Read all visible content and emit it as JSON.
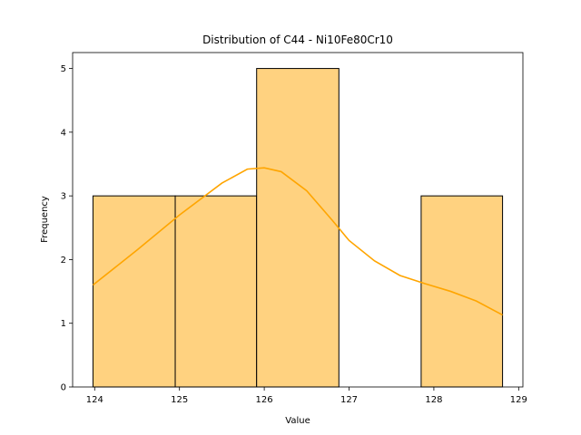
{
  "chart_data": {
    "type": "bar",
    "title": "Distribution of C44 - Ni10Fe80Cr10",
    "xlabel": "Value",
    "ylabel": "Frequency",
    "xlim": [
      123.74,
      129.05
    ],
    "ylim": [
      0,
      5.25
    ],
    "xticks": [
      "124",
      "125",
      "126",
      "127",
      "128",
      "129"
    ],
    "yticks": [
      "0",
      "1",
      "2",
      "3",
      "4",
      "5"
    ],
    "bins": [
      {
        "x0": 123.98,
        "x1": 124.95,
        "count": 3
      },
      {
        "x0": 124.95,
        "x1": 125.91,
        "count": 3
      },
      {
        "x0": 125.91,
        "x1": 126.88,
        "count": 5
      },
      {
        "x0": 126.88,
        "x1": 127.85,
        "count": 0
      },
      {
        "x0": 127.85,
        "x1": 128.81,
        "count": 3
      }
    ],
    "kde": {
      "x": [
        123.98,
        124.5,
        125.0,
        125.5,
        125.8,
        126.0,
        126.2,
        126.5,
        126.8,
        127.0,
        127.3,
        127.6,
        127.9,
        128.2,
        128.5,
        128.81
      ],
      "y": [
        1.6,
        2.15,
        2.7,
        3.2,
        3.42,
        3.44,
        3.38,
        3.08,
        2.62,
        2.3,
        1.98,
        1.75,
        1.62,
        1.5,
        1.35,
        1.13
      ]
    },
    "bar_fill": "#ffd280",
    "bar_edge": "#000000",
    "kde_color": "#ffa500",
    "grid": false,
    "legend": "none"
  }
}
